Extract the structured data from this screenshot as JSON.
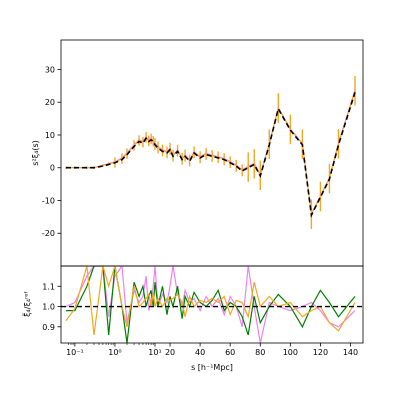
{
  "chart_data": [
    {
      "type": "line",
      "panel": "top",
      "ylabel": "s²ξ₄(s)",
      "ylim": [
        -30,
        39
      ],
      "yticks": [
        -20,
        -10,
        0,
        10,
        20,
        30
      ],
      "x_scale": "symlog (log below 10, linear above)",
      "x": [
        0.06,
        0.1,
        0.2,
        0.3,
        0.5,
        0.7,
        1,
        1.5,
        2,
        3,
        4,
        5,
        6,
        7,
        8,
        9,
        10,
        12,
        15,
        18,
        20,
        22,
        25,
        28,
        30,
        33,
        36,
        40,
        44,
        48,
        52,
        56,
        60,
        64,
        68,
        72,
        76,
        80,
        86,
        92,
        100,
        108,
        114,
        120,
        126,
        132,
        143
      ],
      "series": [
        {
          "name": "",
          "color": "#000000",
          "style": "dashed",
          "values": [
            0,
            0,
            0,
            0,
            0.5,
            1,
            1.5,
            2.5,
            4,
            6.5,
            8,
            7.5,
            9,
            8,
            8.5,
            8,
            7,
            6,
            5,
            4.5,
            5.5,
            3.5,
            5,
            2.5,
            3.5,
            2,
            4.5,
            3,
            4,
            3.5,
            3,
            2.5,
            1.5,
            0.5,
            -1,
            0,
            1,
            -2.5,
            7,
            18,
            11.5,
            7,
            -14.5,
            -9,
            -3.5,
            7,
            23
          ]
        },
        {
          "name": "",
          "color": "#f5a623",
          "style": "solid",
          "values": [
            0,
            0,
            0,
            0,
            0.7,
            1.2,
            1.6,
            2.8,
            4.3,
            6.8,
            8.3,
            7.8,
            9.3,
            8.2,
            8.8,
            8.1,
            7.3,
            6.2,
            5.3,
            4.7,
            5.8,
            3.7,
            5.2,
            2.7,
            3.7,
            2.2,
            4.7,
            3.2,
            4.2,
            3.6,
            3.2,
            2.6,
            1.7,
            0.6,
            -0.8,
            0.2,
            1.2,
            -2.3,
            7.2,
            18.2,
            11.7,
            7.2,
            -14.2,
            -8.8,
            -3.3,
            7.3,
            23.5
          ]
        },
        {
          "name": "",
          "color": "#ee82ee",
          "style": "solid",
          "values": [
            0,
            0,
            0,
            0,
            0.8,
            1.3,
            1.8,
            3,
            4.5,
            7,
            8.5,
            8,
            9.5,
            8.4,
            9,
            8.3,
            7.5,
            6.4,
            5.5,
            4.9,
            6,
            3.9,
            5.4,
            2.9,
            3.9,
            2.4,
            4.9,
            3.4,
            4.4,
            3.8,
            3.4,
            2.8,
            1.9,
            0.8,
            -0.6,
            0.4,
            1.4,
            -2.1,
            7.4,
            18.4,
            11.9,
            7.4,
            -14,
            -8.6,
            -3.1,
            7.5,
            23.8
          ]
        }
      ]
    },
    {
      "type": "line",
      "panel": "bottom",
      "xlabel": "s [h⁻¹Mpc]",
      "ylabel": "ξ̃₄/ξ₄ʳᵉᶠ",
      "ylim": [
        0.82,
        1.2
      ],
      "yticks": [
        0.9,
        1.0,
        1.1
      ],
      "xtick_labels": [
        "10⁻¹",
        "10⁰",
        "10¹",
        "20",
        "40",
        "60",
        "80",
        "100",
        "120",
        "140"
      ],
      "reference_line": 1.0,
      "x": [
        0.06,
        0.1,
        0.2,
        0.3,
        0.5,
        0.7,
        1,
        1.5,
        2,
        3,
        4,
        5,
        6,
        7,
        8,
        9,
        10,
        12,
        15,
        18,
        20,
        22,
        25,
        28,
        30,
        33,
        36,
        40,
        44,
        48,
        52,
        56,
        60,
        64,
        68,
        72,
        76,
        80,
        86,
        92,
        100,
        108,
        114,
        120,
        126,
        132,
        143
      ],
      "series": [
        {
          "name": "",
          "color": "#ee82ee",
          "values": [
            1.0,
            1.02,
            1.15,
            1.2,
            1.2,
            0.95,
            1.15,
            1.2,
            0.92,
            1.08,
            1.02,
            1.05,
            1.15,
            0.98,
            1.03,
            1.1,
            1.2,
            1.0,
            1.06,
            1.02,
            1.1,
            1.2,
            1.06,
            1.0,
            1.08,
            1.02,
            1.04,
            0.98,
            1.05,
            1.0,
            1.04,
            0.96,
            1.05,
            1.0,
            0.9,
            1.2,
            1.0,
            0.82,
            1.02,
            1.0,
            0.98,
            1.0,
            1.02,
            0.98,
            0.92,
            0.9,
            0.98
          ]
        },
        {
          "name": "",
          "color": "#008000",
          "values": [
            0.98,
            0.98,
            1.1,
            1.2,
            1.2,
            0.86,
            1.2,
            1.0,
            0.82,
            1.12,
            1.05,
            1.1,
            1.0,
            1.05,
            1.08,
            1.0,
            1.12,
            1.0,
            1.1,
            0.96,
            1.05,
            1.0,
            1.1,
            0.94,
            1.05,
            1.0,
            1.07,
            1.02,
            1.0,
            1.03,
            1.08,
            0.98,
            1.02,
            1.0,
            0.95,
            0.86,
            1.05,
            0.92,
            1.0,
            1.06,
            1.0,
            0.9,
            1.0,
            1.08,
            1.02,
            0.95,
            1.05
          ]
        },
        {
          "name": "",
          "color": "#f5a623",
          "values": [
            0.93,
            0.99,
            1.2,
            0.86,
            1.2,
            1.1,
            1.2,
            1.0,
            0.9,
            1.1,
            1.0,
            1.02,
            1.04,
            1.06,
            1.0,
            1.07,
            1.0,
            1.04,
            1.0,
            1.04,
            1.03,
            1.04,
            1.06,
            1.02,
            0.95,
            1.05,
            1.0,
            1.03,
            1.02,
            1.04,
            1.02,
            1.05,
            0.96,
            1.03,
            1.02,
            0.95,
            1.12,
            1.0,
            1.05,
            1.0,
            1.02,
            0.95,
            0.98,
            1.0,
            0.92,
            0.88,
            1.02
          ]
        }
      ]
    }
  ]
}
